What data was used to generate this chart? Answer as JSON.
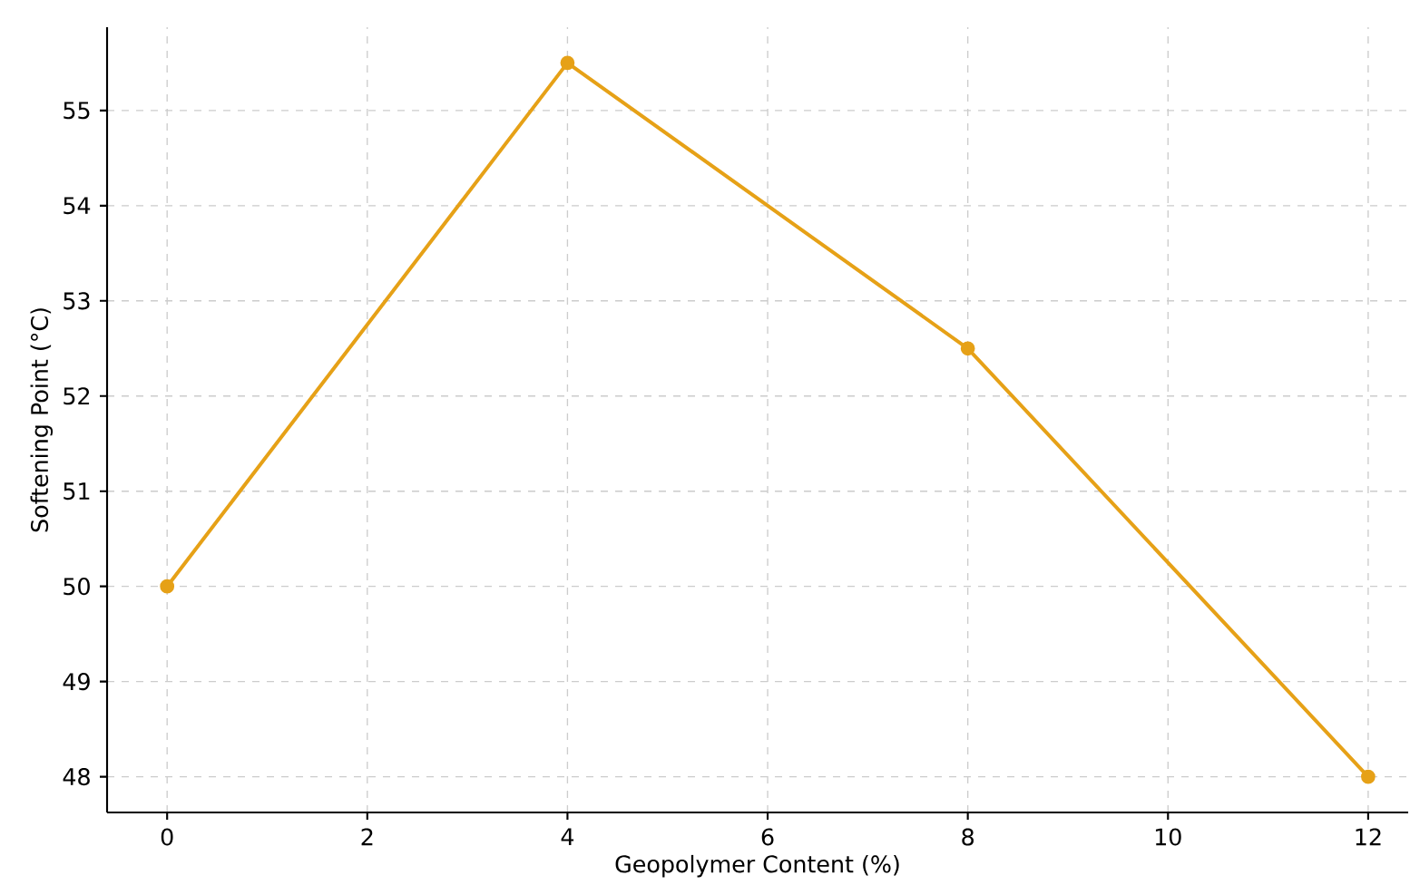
{
  "chart_data": {
    "type": "line",
    "xlabel": "Geopolymer Content (%)",
    "ylabel": "Softening Point (°C)",
    "x": [
      0,
      4,
      8,
      12
    ],
    "series": [
      {
        "color": "#e6a117",
        "values": [
          50,
          55.5,
          52.5,
          48
        ]
      }
    ],
    "xlim": [
      -0.6,
      12.4
    ],
    "ylim": [
      47.625,
      55.875
    ],
    "xticks": [
      0,
      2,
      4,
      6,
      8,
      10,
      12
    ],
    "yticks": [
      48,
      49,
      50,
      51,
      52,
      53,
      54,
      55
    ],
    "grid": true,
    "marker": "circle",
    "line_style": "solid"
  }
}
